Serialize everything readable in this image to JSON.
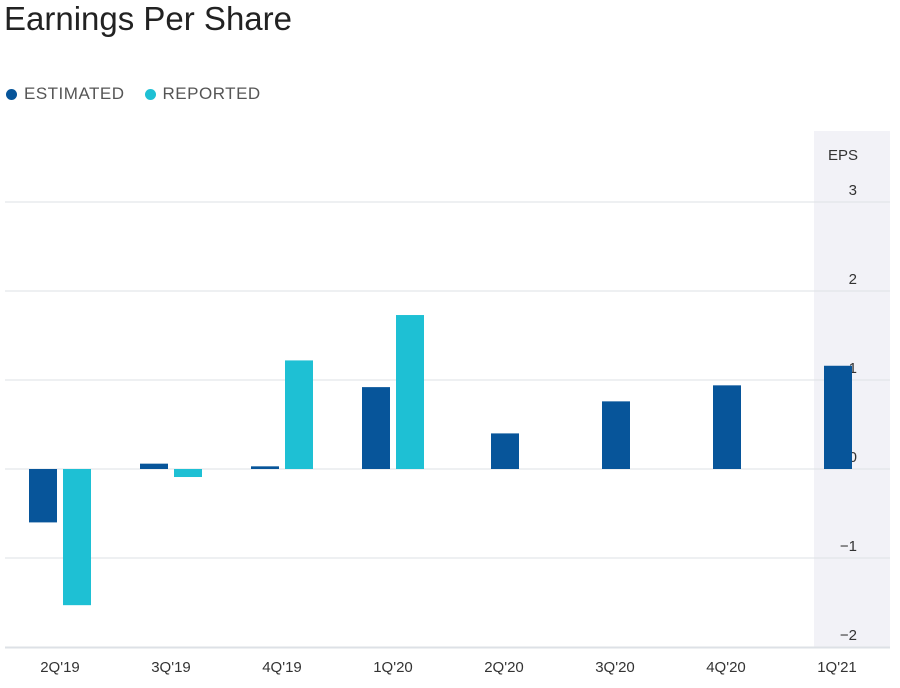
{
  "title": "Earnings Per Share",
  "legend": {
    "estimated_label": "ESTIMATED",
    "reported_label": "REPORTED"
  },
  "colors": {
    "estimated": "#07559a",
    "reported": "#1ec0d4",
    "grid": "#dde1e6",
    "axis_band": "#f2f2f7"
  },
  "chart_data": {
    "type": "bar",
    "title": "Earnings Per Share",
    "ylabel": "EPS",
    "categories": [
      "2Q'19",
      "3Q'19",
      "4Q'19",
      "1Q'20",
      "2Q'20",
      "3Q'20",
      "4Q'20",
      "1Q'21"
    ],
    "series": [
      {
        "name": "ESTIMATED",
        "values": [
          -0.6,
          0.06,
          0.03,
          0.92,
          0.4,
          0.76,
          0.94,
          1.16
        ]
      },
      {
        "name": "REPORTED",
        "values": [
          -1.53,
          -0.09,
          1.22,
          1.73,
          null,
          null,
          null,
          null
        ]
      }
    ],
    "yticks": [
      3,
      2,
      1,
      0,
      -1,
      -2
    ],
    "ylim": [
      -2,
      3
    ],
    "grid": true,
    "legend_position": "top-left"
  }
}
